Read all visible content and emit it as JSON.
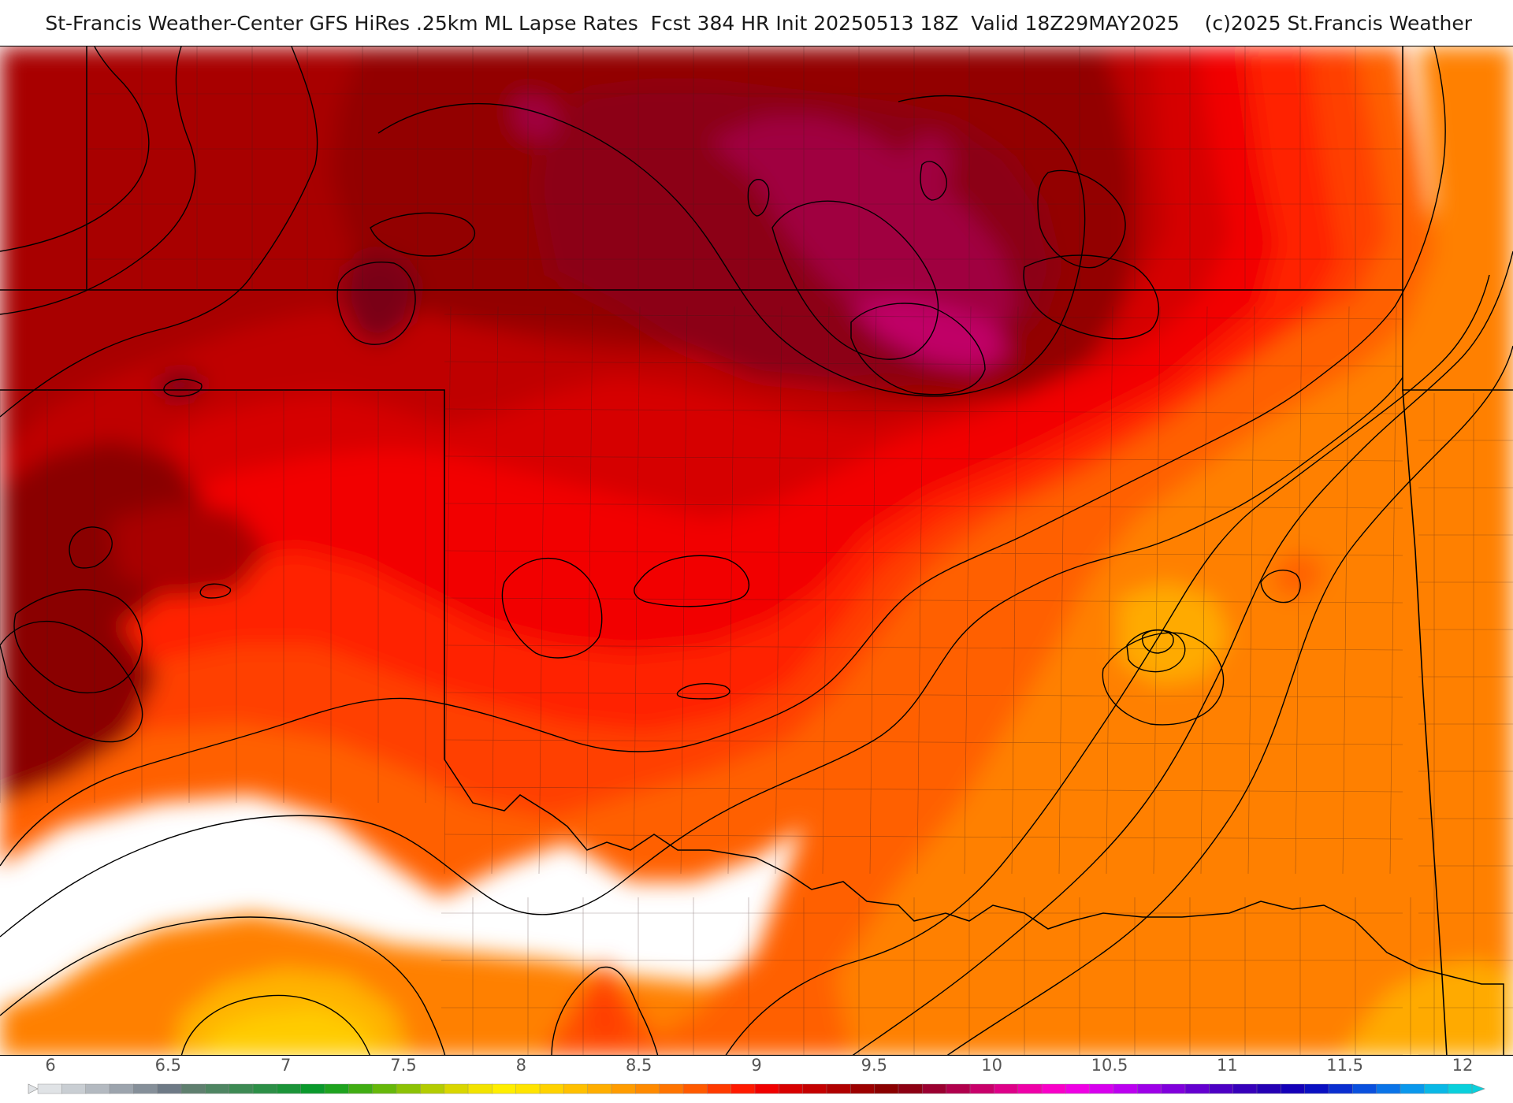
{
  "header": {
    "title": "St-Francis Weather-Center GFS HiRes .25km ML Lapse Rates  Fcst 384 HR Init 20250513 18Z  Valid 18Z29MAY2025    (c)2025 St.Francis Weather"
  },
  "map": {
    "field": "ML Lapse Rates",
    "units": "",
    "grid_max": 9.75,
    "grid_min": 3.8
  },
  "colorbar": {
    "ticks": [
      "6",
      "6.5",
      "7",
      "7.5",
      "8",
      "8.5",
      "9",
      "9.5",
      "10",
      "10.5",
      "11",
      "11.5",
      "12"
    ],
    "colors": [
      "#e0e3e6",
      "#c9ced3",
      "#b3b9c0",
      "#9ca4ad",
      "#858f99",
      "#6e7a86",
      "#5f7f6f",
      "#4e8562",
      "#3d8a54",
      "#2c8f47",
      "#1b9439",
      "#0a992c",
      "#1ea31f",
      "#40ad13",
      "#66b80a",
      "#8cc205",
      "#b3cc02",
      "#d9d600",
      "#f2e300",
      "#ffee00",
      "#ffe400",
      "#ffd200",
      "#ffc000",
      "#ffae00",
      "#ff9c00",
      "#ff8a00",
      "#ff7400",
      "#ff5a00",
      "#ff3a00",
      "#ff1a00",
      "#f00000",
      "#d80000",
      "#c40000",
      "#b00000",
      "#9c0000",
      "#8a0000",
      "#8c0012",
      "#9a0030",
      "#b0004c",
      "#c8006a",
      "#de0088",
      "#ef00a8",
      "#f900c8",
      "#ef00e4",
      "#d700ee",
      "#bb00f0",
      "#9d00e8",
      "#8000dc",
      "#6400d0",
      "#4c00c4",
      "#3600ba",
      "#2400b4",
      "#1400b8",
      "#0a10c2",
      "#0a2ed0",
      "#0a50de",
      "#0a74e8",
      "#0a98ec",
      "#0ab8e6",
      "#0ad0dc"
    ]
  }
}
